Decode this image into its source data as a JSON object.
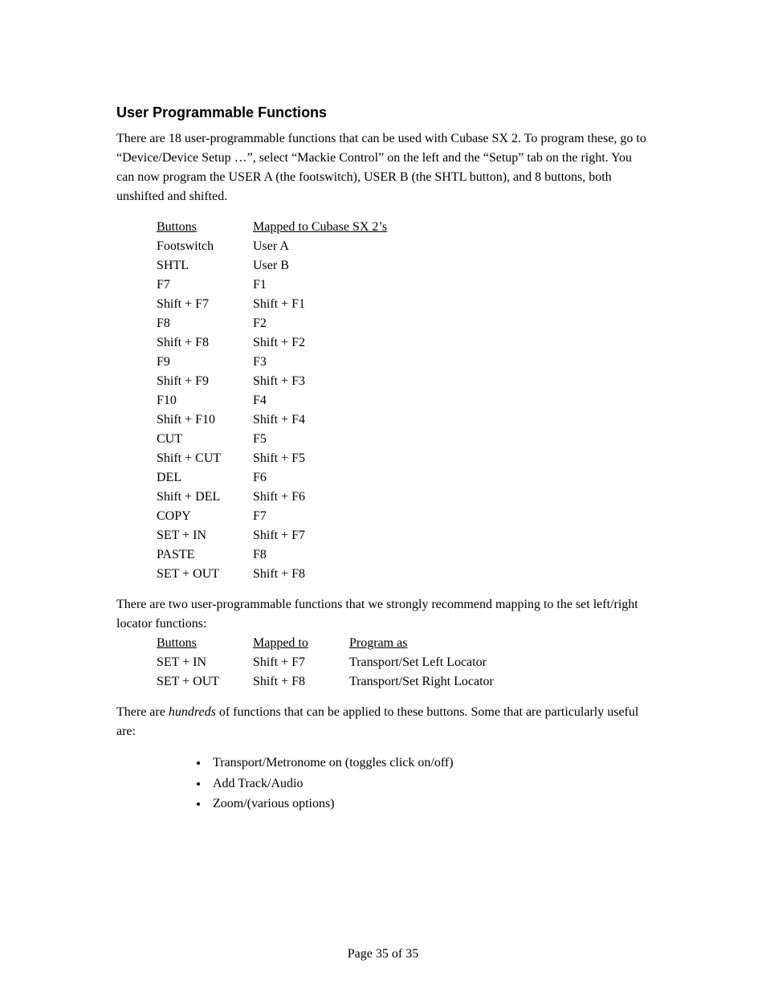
{
  "heading": "User Programmable Functions",
  "para1": "There are 18 user-programmable functions that can be used with Cubase SX 2. To program these, go to “Device/Device Setup …”, select “Mackie Control” on the left and the “Setup” tab on the right. You can now program the USER A (the footswitch),  USER B (the SHTL button), and 8 buttons, both unshifted and shifted.",
  "table1": {
    "header": {
      "c1": "Buttons",
      "c2": "Mapped to Cubase SX 2’s"
    },
    "rows": [
      {
        "c1": "Footswitch",
        "c2": "User A"
      },
      {
        "c1": "SHTL",
        "c2": "User B"
      },
      {
        "c1": "F7",
        "c2": "F1"
      },
      {
        "c1": "Shift + F7",
        "c2": "Shift + F1"
      },
      {
        "c1": "F8",
        "c2": "F2"
      },
      {
        "c1": "Shift + F8",
        "c2": "Shift + F2"
      },
      {
        "c1": "F9",
        "c2": "F3"
      },
      {
        "c1": "Shift + F9",
        "c2": "Shift + F3"
      },
      {
        "c1": "F10",
        "c2": "F4"
      },
      {
        "c1": "Shift + F10",
        "c2": "Shift + F4"
      },
      {
        "c1": "CUT",
        "c2": "F5"
      },
      {
        "c1": "Shift + CUT",
        "c2": "Shift + F5"
      },
      {
        "c1": "DEL",
        "c2": "F6"
      },
      {
        "c1": "Shift + DEL",
        "c2": "Shift + F6"
      },
      {
        "c1": "COPY",
        "c2": "F7"
      },
      {
        "c1": "SET + IN",
        "c2": "Shift + F7"
      },
      {
        "c1": "PASTE",
        "c2": "F8"
      },
      {
        "c1": "SET + OUT",
        "c2": "Shift + F8"
      }
    ]
  },
  "para2": "There are two user-programmable functions that we strongly recommend mapping to the set left/right locator functions:",
  "table2": {
    "header": {
      "c1": "Buttons",
      "c2": "Mapped to",
      "c3": "Program as"
    },
    "rows": [
      {
        "c1": "SET + IN",
        "c2": "Shift + F7",
        "c3": "Transport/Set Left Locator"
      },
      {
        "c1": "SET + OUT",
        "c2": "Shift + F8",
        "c3": "Transport/Set Right Locator"
      }
    ]
  },
  "para3_a": "There are ",
  "para3_b": "hundreds",
  "para3_c": " of functions that can be applied to these buttons. Some that are particularly useful are:",
  "bullets": [
    "Transport/Metronome on (toggles click on/off)",
    "Add Track/Audio",
    "Zoom/(various options)"
  ],
  "footer": "Page 35 of 35"
}
